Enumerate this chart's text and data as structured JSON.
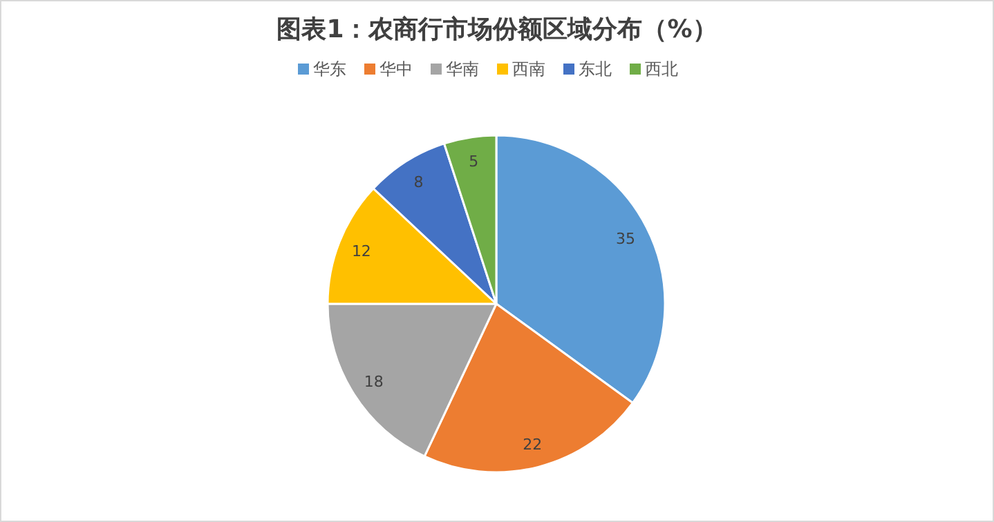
{
  "chart_data": {
    "type": "pie",
    "title": "图表1：农商行市场份额区域分布（%）",
    "categories": [
      "华东",
      "华中",
      "华南",
      "西南",
      "东北",
      "西北"
    ],
    "values": [
      35,
      22,
      18,
      12,
      8,
      5
    ],
    "colors": [
      "#5b9bd5",
      "#ed7d31",
      "#a5a5a5",
      "#ffc000",
      "#4472c4",
      "#70ad47"
    ],
    "data_labels": true,
    "legend": "top"
  }
}
